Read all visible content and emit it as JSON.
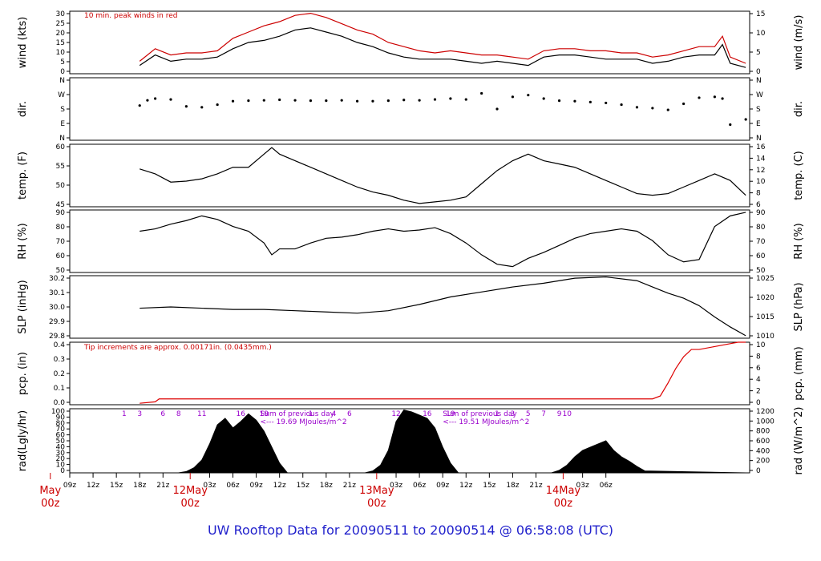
{
  "chart_data": [
    {
      "type": "line",
      "ylabel_left": "wind (kts)",
      "ylabel_right": "wind (m/s)",
      "yticks_left": [
        "0",
        "5",
        "10",
        "15",
        "20",
        "25",
        "30"
      ],
      "yticks_right": [
        "0",
        "5",
        "10",
        "15"
      ],
      "ylim_left": [
        0,
        30
      ],
      "ylim_right": [
        0,
        15.4
      ],
      "annotation": "10 min. peak winds in red",
      "series": [
        {
          "name": "wind",
          "color": "#000000",
          "x": [
            0,
            2,
            4,
            6,
            8,
            10,
            12,
            14,
            16,
            18,
            20,
            22,
            24,
            26,
            28,
            30,
            32,
            34,
            36,
            38,
            40,
            42,
            44,
            46,
            48,
            50,
            52,
            54,
            56,
            58,
            60,
            62,
            64,
            66,
            68,
            70,
            72,
            74,
            75,
            76,
            78
          ],
          "y": [
            4,
            9,
            6,
            7,
            7,
            8,
            12,
            15,
            16,
            18,
            21,
            22,
            20,
            18,
            15,
            13,
            10,
            8,
            7,
            7,
            7,
            6,
            5,
            6,
            5,
            4,
            8,
            9,
            9,
            8,
            7,
            7,
            7,
            5,
            6,
            8,
            9,
            9,
            14,
            5,
            3
          ]
        },
        {
          "name": "peak",
          "color": "#cc0000",
          "x": [
            0,
            2,
            4,
            6,
            8,
            10,
            12,
            14,
            16,
            18,
            20,
            22,
            24,
            26,
            28,
            30,
            32,
            34,
            36,
            38,
            40,
            42,
            44,
            46,
            48,
            50,
            52,
            54,
            56,
            58,
            60,
            62,
            64,
            66,
            68,
            70,
            72,
            74,
            75,
            76,
            78
          ],
          "y": [
            6,
            12,
            9,
            10,
            10,
            11,
            17,
            20,
            23,
            25,
            28,
            29,
            27,
            24,
            21,
            19,
            15,
            13,
            11,
            10,
            11,
            10,
            9,
            9,
            8,
            7,
            11,
            12,
            12,
            11,
            11,
            10,
            10,
            8,
            9,
            11,
            13,
            13,
            18,
            8,
            5
          ]
        }
      ]
    },
    {
      "type": "scatter",
      "ylabel_left": "dir.",
      "ylabel_right": "dir.",
      "yticks_left": [
        "N",
        "E",
        "S",
        "W",
        "N"
      ],
      "yticks_right": [
        "N",
        "E",
        "S",
        "W",
        "N"
      ],
      "ylim_left": [
        0,
        360
      ],
      "series": [
        {
          "name": "direction",
          "color": "#000000",
          "x": [
            0,
            1,
            2,
            4,
            6,
            8,
            10,
            12,
            14,
            16,
            18,
            20,
            22,
            24,
            26,
            28,
            30,
            32,
            34,
            36,
            38,
            40,
            42,
            44,
            46,
            48,
            50,
            52,
            54,
            56,
            58,
            60,
            62,
            64,
            66,
            68,
            70,
            72,
            74,
            75,
            76,
            78
          ],
          "y": [
            200,
            230,
            240,
            235,
            195,
            190,
            205,
            225,
            228,
            230,
            233,
            230,
            228,
            228,
            230,
            225,
            225,
            228,
            232,
            230,
            235,
            240,
            235,
            270,
            180,
            250,
            260,
            240,
            228,
            225,
            220,
            215,
            205,
            190,
            185,
            175,
            210,
            245,
            250,
            240,
            90,
            120
          ]
        }
      ]
    },
    {
      "type": "line",
      "ylabel_left": "temp. (F)",
      "ylabel_right": "temp. (C)",
      "yticks_left": [
        "45",
        "50",
        "55",
        "60"
      ],
      "yticks_right": [
        "6",
        "8",
        "10",
        "12",
        "14",
        "16"
      ],
      "ylim_left": [
        42,
        61
      ],
      "series": [
        {
          "name": "temperature",
          "color": "#000000",
          "x": [
            0,
            2,
            4,
            6,
            8,
            10,
            12,
            14,
            16,
            17,
            18,
            20,
            22,
            24,
            26,
            28,
            30,
            32,
            34,
            36,
            38,
            40,
            42,
            44,
            46,
            48,
            50,
            52,
            54,
            56,
            58,
            60,
            62,
            64,
            66,
            68,
            70,
            72,
            74,
            76,
            78
          ],
          "y": [
            53.5,
            52,
            49.5,
            49.8,
            50.5,
            52,
            54,
            54,
            58,
            60,
            58,
            56,
            54,
            52,
            50,
            48,
            46.5,
            45.5,
            44,
            43,
            43.5,
            44,
            45,
            49,
            53,
            56,
            58,
            56,
            55,
            54,
            52,
            50,
            48,
            46,
            45.5,
            46,
            48,
            50,
            52,
            50,
            45.5
          ]
        }
      ]
    },
    {
      "type": "line",
      "ylabel_left": "RH (%)",
      "ylabel_right": "RH (%)",
      "yticks_left": [
        "50",
        "60",
        "70",
        "80",
        "90"
      ],
      "yticks_right": [
        "50",
        "60",
        "70",
        "80",
        "90"
      ],
      "ylim_left": [
        43,
        96
      ],
      "series": [
        {
          "name": "relative humidity",
          "color": "#000000",
          "x": [
            0,
            2,
            4,
            6,
            8,
            10,
            12,
            14,
            16,
            17,
            18,
            20,
            22,
            24,
            26,
            28,
            30,
            32,
            34,
            36,
            38,
            40,
            42,
            44,
            46,
            48,
            50,
            52,
            54,
            56,
            58,
            60,
            62,
            64,
            66,
            68,
            70,
            72,
            74,
            76,
            78
          ],
          "y": [
            78,
            80,
            84,
            87,
            91,
            88,
            82,
            78,
            68,
            58,
            63,
            63,
            68,
            72,
            73,
            75,
            78,
            80,
            78,
            79,
            81,
            76,
            68,
            58,
            50,
            48,
            55,
            60,
            66,
            72,
            76,
            78,
            80,
            78,
            70,
            58,
            52,
            54,
            82,
            91,
            94
          ]
        }
      ]
    },
    {
      "type": "line",
      "ylabel_left": "SLP (inHg)",
      "ylabel_right": "SLP (hPa)",
      "yticks_left": [
        "29.8",
        "29.9",
        "30.0",
        "30.1",
        "30.2"
      ],
      "yticks_right": [
        "1010",
        "1015",
        "1020",
        "1025"
      ],
      "ylim_left": [
        29.77,
        30.27
      ],
      "series": [
        {
          "name": "sea level pressure",
          "color": "#000000",
          "x": [
            0,
            4,
            8,
            12,
            16,
            20,
            24,
            28,
            32,
            36,
            40,
            44,
            48,
            52,
            56,
            60,
            64,
            66,
            68,
            70,
            72,
            74,
            76,
            78
          ],
          "y": [
            30.01,
            30.02,
            30.01,
            30.0,
            30.0,
            29.99,
            29.98,
            29.97,
            29.99,
            30.04,
            30.1,
            30.14,
            30.18,
            30.21,
            30.25,
            30.26,
            30.23,
            30.18,
            30.13,
            30.09,
            30.03,
            29.94,
            29.86,
            29.79
          ]
        }
      ]
    },
    {
      "type": "line",
      "ylabel_left": "pcp. (in)",
      "ylabel_right": "pcp. (mm)",
      "yticks_left": [
        "0.0",
        "0.1",
        "0.2",
        "0.3",
        "0.4"
      ],
      "yticks_right": [
        "0",
        "2",
        "4",
        "6",
        "8",
        "10"
      ],
      "ylim_left": [
        0,
        0.43
      ],
      "annotation": "Tip increments are approx. 0.00171in. (0.0435mm.)",
      "series": [
        {
          "name": "precipitation",
          "color": "#dd0000",
          "x": [
            0,
            2,
            2.5,
            10,
            30,
            60,
            64,
            66,
            67,
            68,
            69,
            70,
            71,
            72,
            74,
            76,
            77,
            78
          ],
          "y": [
            0.01,
            0.02,
            0.04,
            0.04,
            0.04,
            0.04,
            0.04,
            0.04,
            0.06,
            0.15,
            0.25,
            0.33,
            0.38,
            0.38,
            0.4,
            0.42,
            0.43,
            0.43
          ]
        }
      ]
    },
    {
      "type": "area",
      "ylabel_left": "rad(Lgly/hr)",
      "ylabel_right": "rad (W/m^2)",
      "yticks_left": [
        "0",
        "10",
        "20",
        "30",
        "40",
        "50",
        "60",
        "70",
        "80",
        "90",
        "100"
      ],
      "yticks_right": [
        "0",
        "200",
        "400",
        "600",
        "800",
        "1000",
        "1200"
      ],
      "ylim_left": [
        0,
        100
      ],
      "hour_markers": [
        [
          "1",
          "3",
          "6",
          "8",
          "11",
          "16",
          "19"
        ],
        [
          "1",
          "4",
          "6",
          "12",
          "16",
          "19"
        ],
        [
          "1",
          "3",
          "5",
          "7",
          "9",
          "10"
        ]
      ],
      "annotations": [
        {
          "line1": "Sum of previous day",
          "line2": "<--- 19.69 MJoules/m^2"
        },
        {
          "line1": "Sum of previous day",
          "line2": "<--- 19.51 MJoules/m^2"
        }
      ],
      "series": [
        {
          "name": "radiation",
          "color": "#000000",
          "x": [
            0,
            5,
            6,
            7,
            8,
            9,
            10,
            11,
            12,
            13,
            14,
            15,
            16,
            17,
            18,
            19,
            29,
            30,
            31,
            32,
            33,
            34,
            35,
            36,
            37,
            38,
            39,
            40,
            41,
            53,
            54,
            55,
            56,
            57,
            58,
            59,
            60,
            61,
            62,
            63,
            64,
            65,
            78
          ],
          "y": [
            0,
            0,
            2,
            8,
            20,
            45,
            75,
            85,
            70,
            80,
            92,
            82,
            65,
            40,
            15,
            0,
            0,
            3,
            12,
            35,
            80,
            98,
            95,
            90,
            85,
            70,
            40,
            15,
            0,
            0,
            4,
            12,
            25,
            35,
            40,
            45,
            50,
            35,
            25,
            18,
            10,
            3,
            0
          ]
        }
      ]
    }
  ],
  "x_axis": {
    "range_hours": [
      -9,
      78.5
    ],
    "ticks": [
      "09z",
      "12z",
      "15z",
      "18z",
      "21z",
      "03z",
      "06z",
      "09z",
      "12z",
      "15z",
      "18z",
      "21z",
      "03z",
      "06z",
      "09z",
      "12z",
      "15z",
      "18z",
      "21z",
      "03z",
      "06z"
    ],
    "date_labels": [
      {
        "day": "May",
        "hour": "00z"
      },
      {
        "day": "12May",
        "hour": "00z"
      },
      {
        "day": "13May",
        "hour": "00z"
      },
      {
        "day": "14May",
        "hour": "00z"
      }
    ]
  },
  "footer": "UW Rooftop Data for 20090511  to  20090514 @ 06:58:08  (UTC)"
}
